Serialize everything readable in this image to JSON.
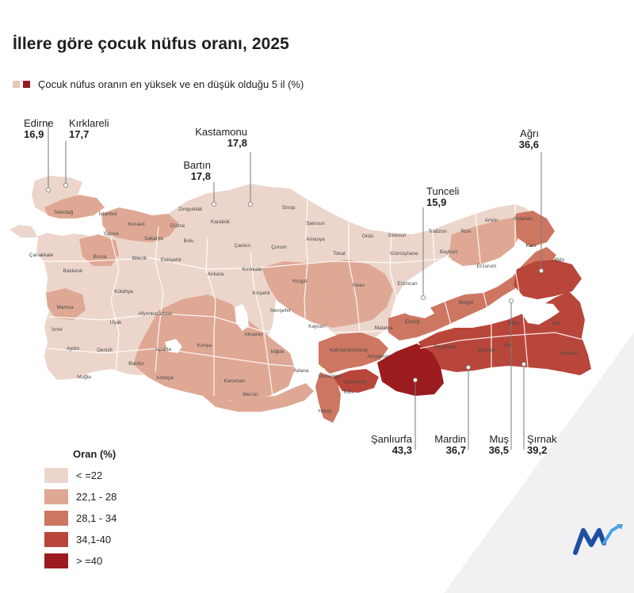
{
  "title": "İllere göre çocuk nüfus oranı, 2025",
  "subtitle": "Çocuk nüfus oranın en yüksek ve en düşük olduğu 5 il (%)",
  "colors": {
    "subtitle_swatch_light": "#e7c7b8",
    "subtitle_swatch_dark": "#9b1b1f",
    "class1": "#ecd6cc",
    "class2": "#dfa895",
    "class3": "#cd7662",
    "class4": "#b9463b",
    "class5": "#9b1b1f",
    "border": "#ffffff"
  },
  "legend": {
    "title": "Oran (%)",
    "items": [
      {
        "label": "< =22",
        "color": "#ecd6cc"
      },
      {
        "label": "22,1 - 28",
        "color": "#dfa895"
      },
      {
        "label": "28,1 - 34",
        "color": "#cd7662"
      },
      {
        "label": "34,1-40",
        "color": "#b9463b"
      },
      {
        "label": "> =40",
        "color": "#9b1b1f"
      }
    ]
  },
  "callouts": [
    {
      "province": "Edirne",
      "value": "16,9"
    },
    {
      "province": "Kırklareli",
      "value": "17,7"
    },
    {
      "province": "Kastamonu",
      "value": "17,8"
    },
    {
      "province": "Bartın",
      "value": "17,8"
    },
    {
      "province": "Tunceli",
      "value": "15,9"
    },
    {
      "province": "Ağrı",
      "value": "36,6"
    },
    {
      "province": "Şanlıurfa",
      "value": "43,3"
    },
    {
      "province": "Mardin",
      "value": "36,7"
    },
    {
      "province": "Muş",
      "value": "36,5"
    },
    {
      "province": "Şırnak",
      "value": "39,2"
    }
  ],
  "map_labels": [
    "Tekirdağ",
    "İstanbul",
    "Kocaeli",
    "Yalova",
    "Sakarya",
    "Düzce",
    "Zonguldak",
    "Karabük",
    "Bolu",
    "Sinop",
    "Samsun",
    "Ordu",
    "Giresun",
    "Trabzon",
    "Rize",
    "Artvin",
    "Ardahan",
    "Kars",
    "Iğdır",
    "Çanakkale",
    "Balıkesir",
    "Bursa",
    "Bilecik",
    "Eskişehir",
    "Ankara",
    "Çankırı",
    "Çorum",
    "Amasya",
    "Tokat",
    "Gümüşhane",
    "Bayburt",
    "Erzurum",
    "Kırıkkale",
    "Yozgat",
    "Sivas",
    "Erzincan",
    "Kütahya",
    "Manisa",
    "Uşak",
    "Afyonkarahisar",
    "Kırşehir",
    "Nevşehir",
    "Bingöl",
    "İzmir",
    "Aydın",
    "Denizli",
    "Isparta",
    "Konya",
    "Aksaray",
    "Kayseri",
    "Malatya",
    "Elazığ",
    "Bitlis",
    "Van",
    "Siirt",
    "Batman",
    "Diyarbakır",
    "Hakkari",
    "Burdur",
    "Niğde",
    "Kahramanmaraş",
    "Adıyaman",
    "Muğla",
    "Antalya",
    "Karaman",
    "Adana",
    "Osmaniye",
    "Gaziantep",
    "Kilis",
    "Mersin",
    "Hatay"
  ]
}
